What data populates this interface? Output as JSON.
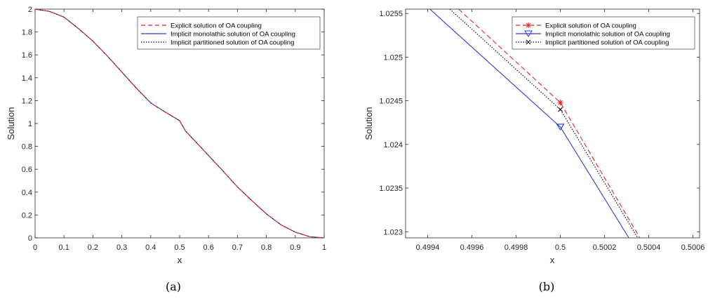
{
  "chart_data": [
    {
      "type": "line",
      "panel_label": "(a)",
      "xlabel": "x",
      "ylabel": "Solution",
      "xlim": [
        0,
        1
      ],
      "ylim": [
        0,
        2
      ],
      "xticks": [
        0,
        0.1,
        0.2,
        0.3,
        0.4,
        0.5,
        0.6,
        0.7,
        0.8,
        0.9,
        1
      ],
      "xtick_labels": [
        "0",
        "0.1",
        "0.2",
        "0.3",
        "0.4",
        "0.5",
        "0.6",
        "0.7",
        "0.8",
        "0.9",
        "1"
      ],
      "yticks": [
        0,
        0.2,
        0.4,
        0.6,
        0.8,
        1,
        1.2,
        1.4,
        1.6,
        1.8,
        2
      ],
      "ytick_labels": [
        "0",
        "0.2",
        "0.4",
        "0.6",
        "0.8",
        "1",
        "1.2",
        "1.4",
        "1.6",
        "1.8",
        "2"
      ],
      "legend_position": "top-right",
      "series": [
        {
          "name": "Explicit solution of OA coupling",
          "color": "#e8232a",
          "style": "dashed",
          "x": [
            0,
            0.05,
            0.1,
            0.15,
            0.2,
            0.25,
            0.3,
            0.35,
            0.4,
            0.45,
            0.48,
            0.5,
            0.52,
            0.55,
            0.6,
            0.65,
            0.7,
            0.75,
            0.8,
            0.85,
            0.9,
            0.95,
            1
          ],
          "y": [
            2,
            1.98,
            1.93,
            1.83,
            1.72,
            1.59,
            1.45,
            1.31,
            1.18,
            1.1,
            1.055,
            1.025,
            0.935,
            0.855,
            0.72,
            0.585,
            0.445,
            0.325,
            0.21,
            0.115,
            0.05,
            0.01,
            0
          ]
        },
        {
          "name": "Implicit monolathic solution of OA coupling",
          "color": "#2b3bd6",
          "style": "solid",
          "x": [
            0,
            0.05,
            0.1,
            0.15,
            0.2,
            0.25,
            0.3,
            0.35,
            0.4,
            0.45,
            0.48,
            0.5,
            0.52,
            0.55,
            0.6,
            0.65,
            0.7,
            0.75,
            0.8,
            0.85,
            0.9,
            0.95,
            1
          ],
          "y": [
            2,
            1.98,
            1.93,
            1.83,
            1.72,
            1.59,
            1.45,
            1.31,
            1.18,
            1.1,
            1.055,
            1.024,
            0.935,
            0.855,
            0.72,
            0.585,
            0.445,
            0.325,
            0.21,
            0.115,
            0.05,
            0.01,
            0
          ]
        },
        {
          "name": "Implicit partitioned solution of OA coupling",
          "color": "#000000",
          "style": "dotted",
          "x": [
            0,
            0.05,
            0.1,
            0.15,
            0.2,
            0.25,
            0.3,
            0.35,
            0.4,
            0.45,
            0.48,
            0.5,
            0.52,
            0.55,
            0.6,
            0.65,
            0.7,
            0.75,
            0.8,
            0.85,
            0.9,
            0.95,
            1
          ],
          "y": [
            2,
            1.98,
            1.93,
            1.83,
            1.72,
            1.59,
            1.45,
            1.31,
            1.18,
            1.1,
            1.055,
            1.024,
            0.935,
            0.855,
            0.72,
            0.585,
            0.445,
            0.325,
            0.21,
            0.115,
            0.05,
            0.01,
            0
          ]
        }
      ]
    },
    {
      "type": "line",
      "panel_label": "(b)",
      "xlabel": "x",
      "ylabel": "Solution",
      "xlim": [
        0.4993,
        0.50063
      ],
      "ylim": [
        1.02293,
        1.02555
      ],
      "xticks": [
        0.4994,
        0.4996,
        0.4998,
        0.5,
        0.5002,
        0.5004,
        0.5006
      ],
      "xtick_labels": [
        "0.4994",
        "0.4996",
        "0.4998",
        "0.5",
        "0.5002",
        "0.5004",
        "0.5006"
      ],
      "yticks": [
        1.023,
        1.0235,
        1.024,
        1.0245,
        1.025,
        1.0255
      ],
      "ytick_labels": [
        "1.023",
        "1.0235",
        "1.024",
        "1.0245",
        "1.025",
        "1.0255"
      ],
      "legend_position": "top-right",
      "series": [
        {
          "name": "Explicit solution of OA coupling",
          "color": "#e8232a",
          "style": "dashed",
          "marker": "asterisk",
          "x": [
            0.49954,
            0.5,
            0.50036
          ],
          "y": [
            1.02555,
            1.02448,
            1.02293
          ],
          "marker_at": [
            0.5,
            1.02448
          ]
        },
        {
          "name": "Implicit monolathic solution of OA coupling",
          "color": "#2b3bd6",
          "style": "solid",
          "marker": "triangle-down",
          "x": [
            0.49941,
            0.5,
            0.50031
          ],
          "y": [
            1.02555,
            1.0242,
            1.02293
          ],
          "marker_at": [
            0.5,
            1.0242
          ]
        },
        {
          "name": "Implicit partitioned solution of OA coupling",
          "color": "#000000",
          "style": "dotted",
          "marker": "x",
          "x": [
            0.4995,
            0.5,
            0.50035
          ],
          "y": [
            1.02555,
            1.0244,
            1.02293
          ],
          "marker_at": [
            0.5,
            1.0244
          ]
        }
      ]
    }
  ]
}
